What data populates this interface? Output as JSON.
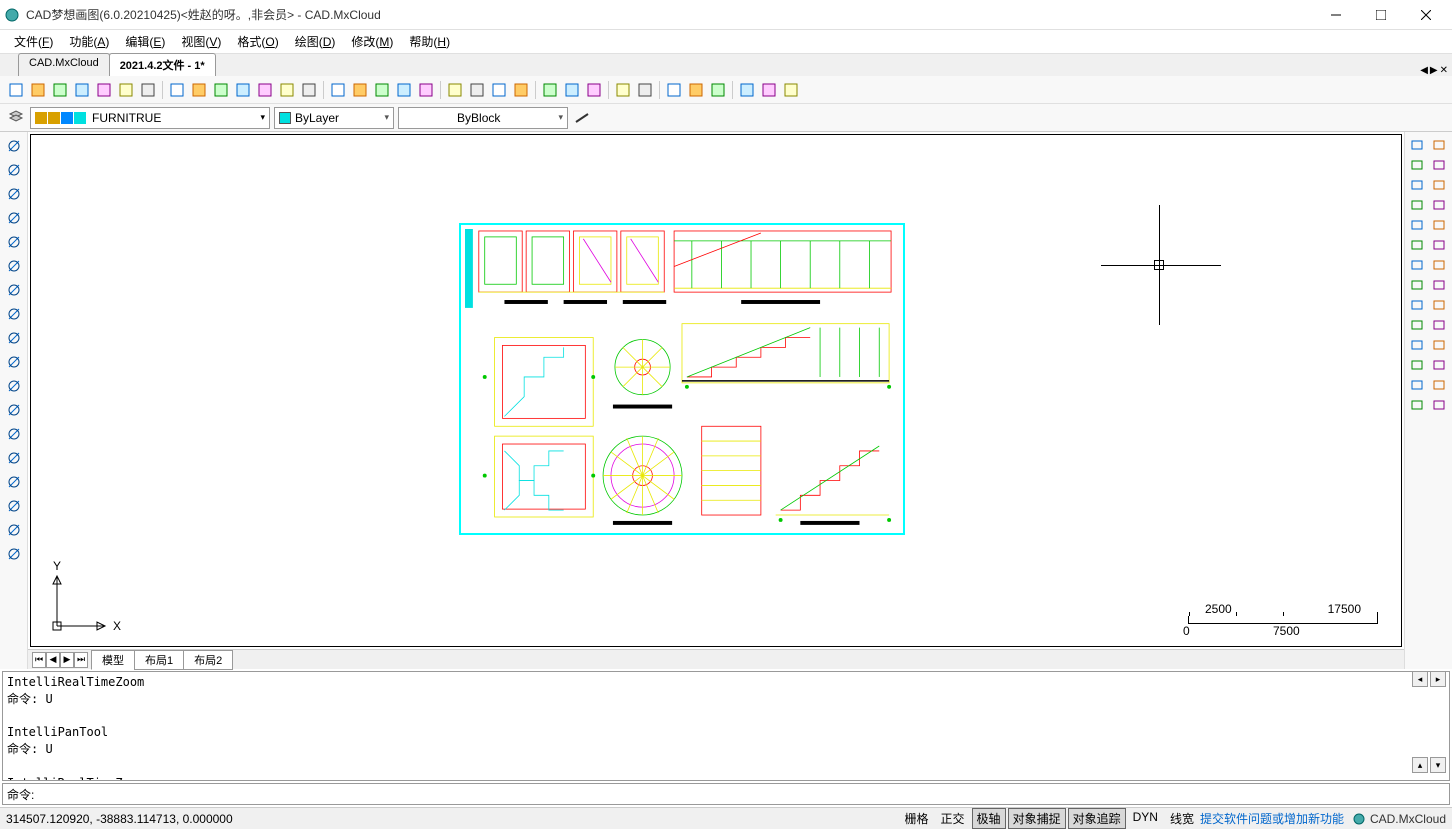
{
  "window": {
    "title": "CAD梦想画图(6.0.20210425)<姓赵的呀。,非会员> - CAD.MxCloud"
  },
  "menu": {
    "items": [
      {
        "label": "文件",
        "key": "F"
      },
      {
        "label": "功能",
        "key": "A"
      },
      {
        "label": "编辑",
        "key": "E"
      },
      {
        "label": "视图",
        "key": "V"
      },
      {
        "label": "格式",
        "key": "O"
      },
      {
        "label": "绘图",
        "key": "D"
      },
      {
        "label": "修改",
        "key": "M"
      },
      {
        "label": "帮助",
        "key": "H"
      }
    ]
  },
  "tabs": {
    "items": [
      {
        "label": "CAD.MxCloud",
        "active": false
      },
      {
        "label": "2021.4.2文件 - 1*",
        "active": true
      }
    ]
  },
  "layer": {
    "current": "FURNITRUE",
    "swatches": [
      "#d8a000",
      "#d8a000",
      "#0088ff",
      "#00e0e0"
    ]
  },
  "colorCombo": {
    "label": "ByLayer",
    "swatch": "#00e0e0"
  },
  "linetypeCombo": {
    "label": "ByBlock"
  },
  "modelTabs": {
    "items": [
      {
        "label": "模型",
        "active": true
      },
      {
        "label": "布局1",
        "active": false
      },
      {
        "label": "布局2",
        "active": false
      }
    ]
  },
  "commandLog": "IntelliRealTimeZoom\n命令: U\n\nIntelliPanTool\n命令: U\n\nIntelliRealTimeZoom",
  "commandPrompt": "命令: ",
  "scale": {
    "left": "0",
    "topLeft": "2500",
    "mid": "7500",
    "topRight": "17500"
  },
  "ucs": {
    "x": "X",
    "y": "Y"
  },
  "status": {
    "coords": "314507.120920,  -38883.114713,  0.000000",
    "buttons": [
      {
        "label": "栅格",
        "on": false
      },
      {
        "label": "正交",
        "on": false
      },
      {
        "label": "极轴",
        "on": true
      },
      {
        "label": "对象捕捉",
        "on": true
      },
      {
        "label": "对象追踪",
        "on": true
      },
      {
        "label": "DYN",
        "on": false
      },
      {
        "label": "线宽",
        "on": false
      }
    ],
    "link": "提交软件问题或增加新功能",
    "brand": "CAD.MxCloud"
  },
  "drawing": {
    "frameColor": "#00ffff",
    "colors": {
      "red": "#ff0000",
      "green": "#00c800",
      "yellow": "#e8e800",
      "cyan": "#00e0e0",
      "magenta": "#e000e0",
      "black": "#000000"
    }
  }
}
